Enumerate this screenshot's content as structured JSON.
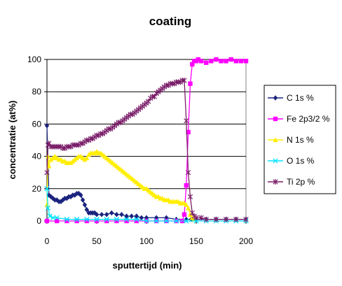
{
  "chart_data": {
    "type": "line",
    "title": "coating",
    "xlabel": "sputtertijd (min)",
    "ylabel": "concentratie (at%)",
    "xlim": [
      0,
      200
    ],
    "ylim": [
      0,
      100
    ],
    "xticks": [
      0,
      50,
      100,
      150,
      200
    ],
    "yticks": [
      0,
      20,
      40,
      60,
      80,
      100
    ],
    "grid": "horizontal",
    "legend": "right",
    "series": [
      {
        "name": "C 1s %",
        "color": "#1a237e",
        "marker": "diamond",
        "x": [
          0,
          2,
          4,
          6,
          8,
          10,
          12,
          14,
          16,
          18,
          20,
          22,
          24,
          26,
          28,
          30,
          32,
          34,
          36,
          38,
          40,
          42,
          44,
          46,
          48,
          50,
          55,
          60,
          65,
          70,
          75,
          80,
          85,
          90,
          95,
          100,
          110,
          120,
          130,
          140,
          145,
          150,
          160,
          170,
          180,
          190,
          200
        ],
        "y": [
          59,
          16,
          15,
          14,
          13,
          13,
          12,
          12,
          13,
          14,
          14,
          15,
          15,
          16,
          16,
          17,
          17,
          16,
          13,
          10,
          7,
          5,
          5,
          5,
          5,
          4,
          4,
          4,
          5,
          4,
          4,
          3,
          3,
          3,
          2,
          2,
          2,
          2,
          1,
          1,
          1,
          1,
          1,
          1,
          1,
          1,
          1
        ]
      },
      {
        "name": "Fe 2p3/2 %",
        "color": "#ff00ff",
        "marker": "square",
        "x": [
          0,
          10,
          20,
          30,
          40,
          50,
          60,
          70,
          80,
          90,
          100,
          110,
          120,
          130,
          136,
          138,
          140,
          142,
          144,
          146,
          148,
          150,
          152,
          155,
          160,
          165,
          170,
          175,
          180,
          185,
          190,
          195,
          200
        ],
        "y": [
          0,
          0,
          0,
          0,
          0,
          0,
          0,
          0,
          0,
          0,
          0,
          0,
          0,
          0,
          0,
          4,
          22,
          55,
          85,
          97,
          99,
          99,
          100,
          99,
          98,
          99,
          100,
          99,
          99,
          100,
          99,
          99,
          99
        ]
      },
      {
        "name": "N 1s %",
        "color": "#ffee00",
        "marker": "triangle",
        "x": [
          0,
          1,
          2,
          4,
          6,
          8,
          10,
          12,
          14,
          16,
          18,
          20,
          22,
          24,
          26,
          28,
          30,
          32,
          34,
          36,
          38,
          40,
          42,
          44,
          46,
          48,
          50,
          52,
          54,
          56,
          58,
          60,
          62,
          64,
          66,
          68,
          70,
          72,
          74,
          76,
          78,
          80,
          82,
          84,
          86,
          88,
          90,
          92,
          94,
          96,
          98,
          100,
          102,
          104,
          106,
          108,
          110,
          112,
          114,
          116,
          118,
          120,
          122,
          124,
          126,
          128,
          130,
          132,
          134,
          136,
          138,
          140,
          142,
          144,
          146,
          148
        ],
        "y": [
          10,
          40,
          34,
          38,
          39,
          40,
          39,
          38,
          38,
          37,
          37,
          36,
          36,
          36,
          37,
          38,
          39,
          40,
          40,
          39,
          38,
          39,
          41,
          42,
          42,
          42,
          43,
          42,
          42,
          41,
          40,
          39,
          38,
          37,
          36,
          35,
          34,
          33,
          32,
          31,
          30,
          29,
          28,
          27,
          26,
          25,
          24,
          23,
          22,
          21,
          20,
          20,
          19,
          18,
          17,
          16,
          15,
          15,
          14,
          14,
          13,
          13,
          13,
          12,
          12,
          12,
          12,
          12,
          11,
          11,
          11,
          10,
          8,
          4,
          2,
          1
        ]
      },
      {
        "name": "O 1s %",
        "color": "#00e5ff",
        "marker": "x",
        "x": [
          0,
          1,
          3,
          6,
          10,
          20,
          30,
          40,
          50,
          60,
          70,
          80,
          90,
          100,
          110,
          120,
          130,
          140,
          150,
          160,
          170,
          180,
          190,
          200
        ],
        "y": [
          20,
          8,
          3,
          2,
          2,
          1,
          1,
          1,
          1,
          1,
          1,
          1,
          1,
          0,
          0,
          0,
          0,
          0,
          0,
          0,
          0,
          0,
          0,
          0
        ]
      },
      {
        "name": "Ti 2p %",
        "color": "#7b1f6a",
        "marker": "star",
        "x": [
          0,
          1,
          2,
          4,
          6,
          8,
          10,
          12,
          14,
          16,
          18,
          20,
          22,
          24,
          26,
          28,
          30,
          32,
          34,
          36,
          38,
          40,
          42,
          44,
          46,
          48,
          50,
          52,
          54,
          56,
          58,
          60,
          62,
          64,
          66,
          68,
          70,
          72,
          74,
          76,
          78,
          80,
          82,
          84,
          86,
          88,
          90,
          92,
          94,
          96,
          98,
          100,
          102,
          104,
          106,
          108,
          110,
          112,
          114,
          116,
          118,
          120,
          122,
          124,
          126,
          128,
          130,
          132,
          134,
          136,
          138,
          140,
          142,
          144,
          146,
          148,
          150,
          155,
          160,
          170,
          180,
          190,
          200
        ],
        "y": [
          30,
          47,
          48,
          46,
          46,
          46,
          46,
          46,
          46,
          45,
          45,
          46,
          46,
          46,
          47,
          47,
          47,
          47,
          48,
          48,
          49,
          50,
          50,
          51,
          51,
          52,
          53,
          53,
          54,
          54,
          55,
          56,
          57,
          57,
          58,
          59,
          60,
          61,
          61,
          62,
          63,
          64,
          65,
          66,
          66,
          67,
          68,
          69,
          70,
          71,
          72,
          73,
          74,
          76,
          77,
          77,
          79,
          80,
          81,
          82,
          83,
          84,
          84,
          85,
          85,
          85,
          86,
          86,
          86,
          87,
          87,
          62,
          30,
          15,
          5,
          3,
          2,
          2,
          1,
          1,
          1,
          1,
          1
        ]
      }
    ]
  }
}
